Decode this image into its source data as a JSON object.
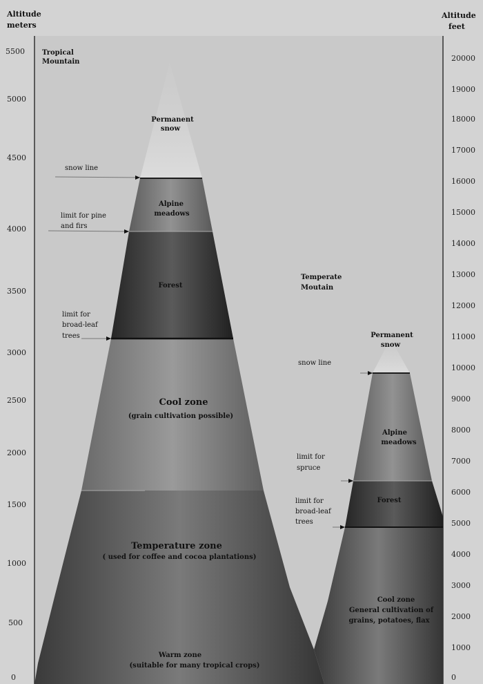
{
  "left_axis": {
    "title_line1": "Altitude",
    "title_line2": "meters",
    "ticks": [
      "5500",
      "5000",
      "4500",
      "4000",
      "3500",
      "3000",
      "2500",
      "2000",
      "1500",
      "1000",
      "500",
      "0"
    ]
  },
  "right_axis": {
    "title_line1": "Altitude",
    "title_line2": "feet",
    "ticks": [
      "20000",
      "19000",
      "18000",
      "17000",
      "16000",
      "15000",
      "14000",
      "13000",
      "12000",
      "11000",
      "10000",
      "9000",
      "8000",
      "7000",
      "6000",
      "5000",
      "4000",
      "3000",
      "2000",
      "1000",
      "0"
    ]
  },
  "tropical": {
    "title_line1": "Tropical",
    "title_line2": "Mountain",
    "snow_line1": "Permanent",
    "snow_line2": "snow",
    "snow_line_label": "snow line",
    "alpine_line1": "Alpine",
    "alpine_line2": "meadows",
    "pine_line1": "limit for pine",
    "pine_line2": "and firs",
    "forest": "Forest",
    "broadleaf_line1": "limit for",
    "broadleaf_line2": "broad-leaf",
    "broadleaf_line3": "trees",
    "cool_title": "Cool zone",
    "cool_sub": "(grain cultivation possible)",
    "temp_title": "Temperature zone",
    "temp_sub": "( used for coffee and cocoa plantations)",
    "warm_title": "Warm zone",
    "warm_sub": "(suitable for many tropical crops)"
  },
  "temperate": {
    "title_line1": "Temperate",
    "title_line2": "Moutain",
    "snow_line1": "Permanent",
    "snow_line2": "snow",
    "snow_line_label": "snow line",
    "alpine_line1": "Alpine",
    "alpine_line2": "meadows",
    "spruce_line1": "limit for",
    "spruce_line2": "spruce",
    "forest": "Forest",
    "broadleaf_line1": "limit for",
    "broadleaf_line2": "broad-leaf",
    "broadleaf_line3": "trees",
    "cool_line1": "Cool zone",
    "cool_line2": "General cultivation of",
    "cool_line3": "grains, potatoes, flax"
  },
  "colors": {
    "background": "#d3d3d3",
    "panel": "#c9c9c9",
    "snow": "#d8d8d8",
    "alpine": "#7c7c7c",
    "forest": "#3c3c3c",
    "cool": "#8a8a8a",
    "temperature": "#5c5c5c",
    "warm": "#4a4a4a"
  }
}
